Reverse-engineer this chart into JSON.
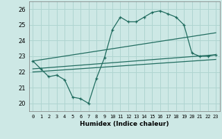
{
  "bg_color": "#cde8e5",
  "grid_color": "#afd4d0",
  "line_color": "#1f6b5e",
  "xlabel": "Humidex (Indice chaleur)",
  "xlim": [
    -0.5,
    23.5
  ],
  "ylim": [
    19.5,
    26.5
  ],
  "yticks": [
    20,
    21,
    22,
    23,
    24,
    25,
    26
  ],
  "xticks": [
    0,
    1,
    2,
    3,
    4,
    5,
    6,
    7,
    8,
    9,
    10,
    11,
    12,
    13,
    14,
    15,
    16,
    17,
    18,
    19,
    20,
    21,
    22,
    23
  ],
  "series1_x": [
    0,
    1,
    2,
    3,
    4,
    5,
    6,
    7,
    8,
    9,
    10,
    11,
    12,
    13,
    14,
    15,
    16,
    17,
    18,
    19,
    20,
    21,
    22,
    23
  ],
  "series1_y": [
    22.7,
    22.2,
    21.7,
    21.8,
    21.5,
    20.4,
    20.3,
    20.0,
    21.6,
    22.9,
    24.7,
    25.5,
    25.2,
    25.2,
    25.5,
    25.8,
    25.9,
    25.7,
    25.5,
    25.0,
    23.2,
    23.0,
    23.0,
    23.1
  ],
  "line2_x": [
    0,
    23
  ],
  "line2_y": [
    22.7,
    24.5
  ],
  "line3_x": [
    0,
    23
  ],
  "line3_y": [
    22.2,
    23.1
  ],
  "line4_x": [
    0,
    23
  ],
  "line4_y": [
    22.0,
    22.8
  ]
}
